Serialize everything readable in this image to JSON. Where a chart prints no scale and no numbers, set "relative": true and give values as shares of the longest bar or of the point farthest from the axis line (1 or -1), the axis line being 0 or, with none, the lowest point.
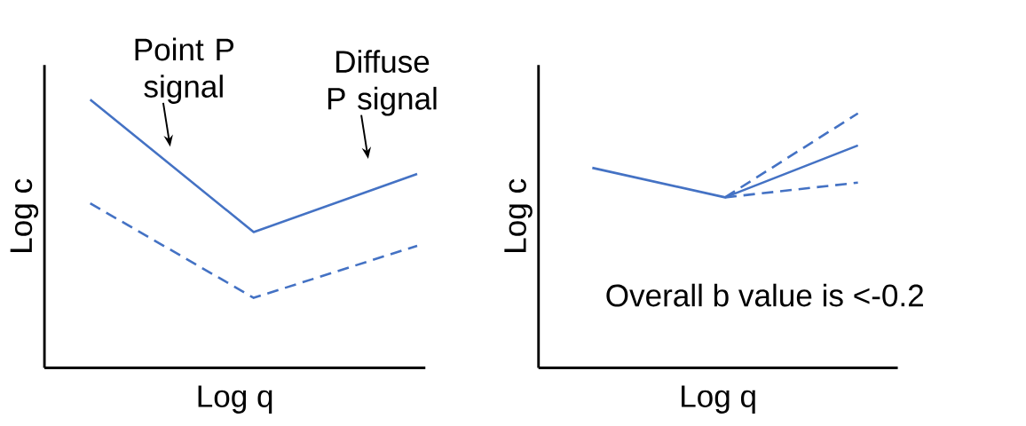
{
  "chart_data": [
    {
      "type": "line",
      "relative": true,
      "tick_labels": false,
      "marker": "none",
      "xlabel": "Log q",
      "ylabel": "Log c",
      "categories": [
        null,
        null,
        null
      ],
      "series": [
        {
          "color": "#4472c4",
          "line_style": "solid",
          "values": [
            1,
            0.506,
            0.723
          ]
        },
        {
          "color": "#4472c4",
          "line_style": "dashed",
          "values": [
            0.613,
            0.261,
            0.455
          ]
        }
      ],
      "annotations": [
        "Point P signal",
        "Diffuse P signal"
      ]
    },
    {
      "type": "line",
      "relative": true,
      "tick_labels": false,
      "marker": "none",
      "xlabel": "Log q",
      "ylabel": "Log c",
      "categories": [
        null,
        null,
        null
      ],
      "series": [
        {
          "color": "#4472c4",
          "line_style": "solid",
          "values": [
            0.786,
            0.67,
            0.874
          ]
        },
        {
          "color": "#4472c4",
          "line_style": "dashed",
          "values": [
            null,
            0.67,
            1
          ]
        },
        {
          "color": "#4472c4",
          "line_style": "dashed",
          "values": [
            null,
            0.67,
            0.728
          ]
        }
      ],
      "annotations": [
        "Overall b value is <-0.2"
      ]
    }
  ]
}
